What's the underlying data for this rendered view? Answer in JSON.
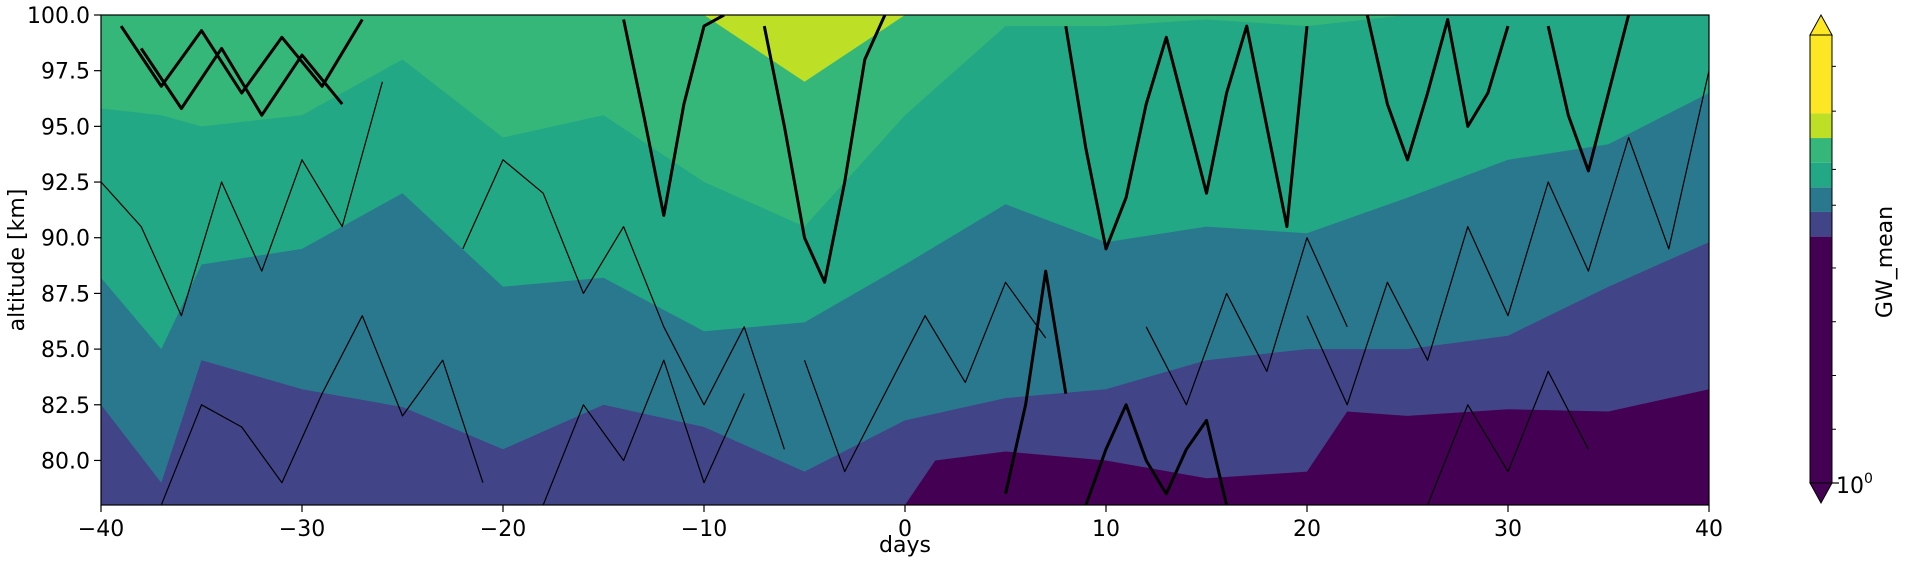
{
  "chart_data": {
    "type": "heatmap",
    "subtype": "filled-contour-with-line-contours",
    "xlabel": "days",
    "ylabel": "altitude [km]",
    "xlim": [
      -40,
      40
    ],
    "ylim": [
      78,
      100
    ],
    "x_ticks": [
      -40,
      -30,
      -20,
      -10,
      0,
      10,
      20,
      30,
      40
    ],
    "x_tick_labels": [
      "−40",
      "−30",
      "−20",
      "−10",
      "0",
      "10",
      "20",
      "30",
      "40"
    ],
    "y_ticks": [
      80.0,
      82.5,
      85.0,
      87.5,
      90.0,
      92.5,
      95.0,
      97.5,
      100.0
    ],
    "y_tick_labels": [
      "80.0",
      "82.5",
      "85.0",
      "87.5",
      "90.0",
      "92.5",
      "95.0",
      "97.5",
      "100.0"
    ],
    "colormap": "viridis",
    "levels": [
      {
        "name": "lowest",
        "color": "#440154"
      },
      {
        "name": "level-2",
        "color": "#414487"
      },
      {
        "name": "level-3",
        "color": "#2a788e"
      },
      {
        "name": "level-4",
        "color": "#22a884"
      },
      {
        "name": "level-5",
        "color": "#35b779"
      },
      {
        "name": "level-6",
        "color": "#bddf26"
      },
      {
        "name": "highest",
        "color": "#fde725"
      }
    ],
    "band_boundaries_km": [
      {
        "name": "b1",
        "x": [
          -40,
          -37,
          -35,
          -30,
          -25,
          -20,
          -15,
          -10,
          -5,
          0,
          1.5,
          5,
          10,
          15,
          20,
          22,
          25,
          30,
          35,
          40
        ],
        "y": [
          78,
          78,
          78,
          78,
          78,
          78,
          78,
          78,
          78,
          78,
          80.0,
          80.4,
          80.0,
          79.2,
          79.5,
          82.2,
          82.0,
          82.3,
          82.2,
          83.2
        ]
      },
      {
        "name": "b2",
        "x": [
          -40,
          -37,
          -35,
          -30,
          -25,
          -20,
          -15,
          -10,
          -5,
          0,
          5,
          10,
          15,
          20,
          25,
          30,
          35,
          40
        ],
        "y": [
          82.5,
          79,
          84.5,
          83.2,
          82.4,
          80.5,
          82.5,
          81.5,
          79.5,
          81.8,
          82.8,
          83.2,
          84.5,
          85.0,
          85.0,
          85.6,
          87.8,
          89.8
        ]
      },
      {
        "name": "b3",
        "x": [
          -40,
          -37,
          -35,
          -30,
          -25,
          -20,
          -15,
          -10,
          -5,
          0,
          5,
          10,
          15,
          20,
          25,
          30,
          35,
          40
        ],
        "y": [
          88.2,
          85.0,
          88.8,
          89.5,
          92.0,
          87.8,
          88.2,
          85.8,
          86.2,
          88.8,
          91.5,
          89.8,
          90.5,
          90.2,
          91.8,
          93.5,
          94.2,
          96.5
        ]
      },
      {
        "name": "b4",
        "x": [
          -40,
          -37,
          -35,
          -30,
          -25,
          -20,
          -15,
          -10,
          -5,
          0,
          5,
          10,
          15,
          20,
          25,
          30,
          35,
          40
        ],
        "y": [
          95.8,
          95.5,
          95.0,
          95.5,
          98.0,
          94.5,
          95.5,
          92.5,
          90.5,
          95.5,
          99.5,
          99.5,
          99.8,
          99.5,
          100,
          100,
          100,
          100
        ]
      },
      {
        "name": "b5",
        "x": [
          -40,
          -35,
          -30,
          -25,
          -20,
          -15,
          -10,
          -5,
          0,
          5,
          10,
          15,
          20,
          25,
          30,
          35,
          40
        ],
        "y": [
          100,
          100,
          100,
          100,
          100,
          100,
          100,
          97.0,
          100,
          100,
          100,
          100,
          100,
          100,
          100,
          100,
          100
        ]
      }
    ],
    "contour_lines": [
      {
        "weight": "thick",
        "x": [
          -39,
          -37,
          -35,
          -33,
          -31,
          -29,
          -27
        ],
        "y": [
          99.5,
          96.8,
          99.3,
          96.5,
          99.0,
          96.8,
          99.8
        ]
      },
      {
        "weight": "thick",
        "x": [
          -38,
          -36,
          -34,
          -32,
          -30,
          -28
        ],
        "y": [
          98.5,
          95.8,
          98.5,
          95.5,
          98.2,
          96.0
        ]
      },
      {
        "weight": "thick",
        "x": [
          -14,
          -13,
          -12,
          -11,
          -10,
          -9
        ],
        "y": [
          99.8,
          95.5,
          91.0,
          96.0,
          99.5,
          100
        ]
      },
      {
        "weight": "thick",
        "x": [
          -7,
          -6,
          -5,
          -4,
          -3,
          -2,
          -1
        ],
        "y": [
          99.5,
          95.0,
          90.0,
          88.0,
          92.5,
          98.0,
          100
        ]
      },
      {
        "weight": "thick",
        "x": [
          8,
          9,
          10,
          11,
          12,
          13,
          14,
          15,
          16,
          17,
          18,
          19,
          20
        ],
        "y": [
          99.5,
          94.0,
          89.5,
          91.8,
          96.0,
          99.0,
          95.5,
          92.0,
          96.5,
          99.5,
          95.0,
          90.5,
          99.5
        ]
      },
      {
        "weight": "thick",
        "x": [
          23,
          24,
          25,
          26,
          27,
          28,
          29,
          30
        ],
        "y": [
          100,
          96.0,
          93.5,
          96.5,
          99.8,
          95.0,
          96.5,
          99.5
        ]
      },
      {
        "weight": "thick",
        "x": [
          32,
          33,
          34,
          35,
          36
        ],
        "y": [
          99.5,
          95.5,
          93.0,
          96.5,
          100
        ]
      },
      {
        "weight": "thick",
        "x": [
          5,
          6,
          7,
          8
        ],
        "y": [
          78.5,
          82.5,
          88.5,
          83.0
        ]
      },
      {
        "weight": "thick",
        "x": [
          9,
          10,
          11,
          12,
          13,
          14,
          15,
          16
        ],
        "y": [
          78,
          80.5,
          82.5,
          80.0,
          78.5,
          80.5,
          81.8,
          78
        ]
      },
      {
        "weight": "thin",
        "x": [
          -37,
          -35,
          -33,
          -31,
          -29,
          -27,
          -25,
          -23,
          -21
        ],
        "y": [
          78,
          82.5,
          81.5,
          79.0,
          83.0,
          86.5,
          82.0,
          84.5,
          79.0
        ]
      },
      {
        "weight": "thin",
        "x": [
          -40,
          -38,
          -36,
          -34,
          -32,
          -30,
          -28,
          -26
        ],
        "y": [
          92.5,
          90.5,
          86.5,
          92.5,
          88.5,
          93.5,
          90.5,
          97.0
        ]
      },
      {
        "weight": "thin",
        "x": [
          -22,
          -20,
          -18,
          -16,
          -14,
          -12,
          -10,
          -8,
          -6
        ],
        "y": [
          89.5,
          93.5,
          92.0,
          87.5,
          90.5,
          86.0,
          82.5,
          86.0,
          80.5
        ]
      },
      {
        "weight": "thin",
        "x": [
          -5,
          -3,
          -1,
          1,
          3,
          5,
          7
        ],
        "y": [
          84.5,
          79.5,
          83.0,
          86.5,
          83.5,
          88.0,
          85.5
        ]
      },
      {
        "weight": "thin",
        "x": [
          20,
          22,
          24,
          26,
          28,
          30,
          32,
          34,
          36,
          38,
          40
        ],
        "y": [
          86.5,
          82.5,
          88.0,
          84.5,
          90.5,
          86.5,
          92.5,
          88.5,
          94.5,
          89.5,
          97.5
        ]
      },
      {
        "weight": "thin",
        "x": [
          12,
          14,
          16,
          18,
          20,
          22
        ],
        "y": [
          86.0,
          82.5,
          87.5,
          84.0,
          90.0,
          86.0
        ]
      },
      {
        "weight": "thin",
        "x": [
          -18,
          -16,
          -14,
          -12,
          -10,
          -8
        ],
        "y": [
          78,
          82.5,
          80.0,
          84.5,
          79.0,
          83.0
        ]
      },
      {
        "weight": "thin",
        "x": [
          26,
          28,
          30,
          32,
          34
        ],
        "y": [
          78,
          82.5,
          79.5,
          84.0,
          80.5
        ]
      }
    ],
    "colorbar": {
      "label": "GW_mean",
      "scale": "log",
      "tick_label": "10",
      "tick_exponent": "0",
      "extend": "both"
    },
    "grid": false
  }
}
